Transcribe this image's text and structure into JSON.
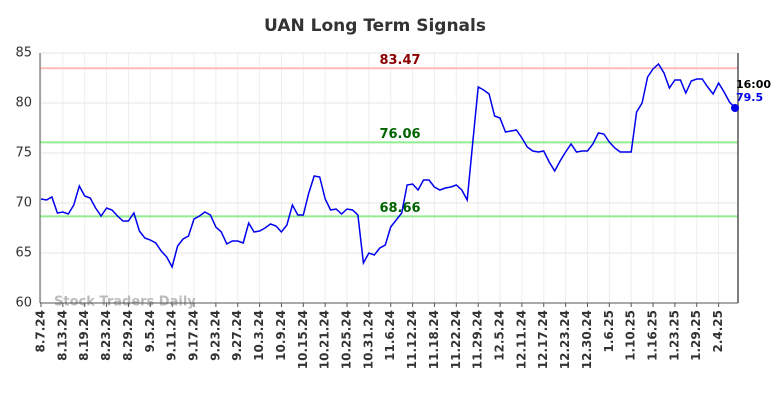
{
  "chart_data": {
    "type": "line",
    "title": "UAN Long Term Signals",
    "watermark": "Stock Traders Daily",
    "annotation": "16:00",
    "categories": [
      "8.7.24",
      null,
      null,
      null,
      "8.13.24",
      null,
      null,
      null,
      "8.19.24",
      null,
      null,
      null,
      "8.23.24",
      null,
      null,
      null,
      "8.29.24",
      null,
      null,
      null,
      "9.5.24",
      null,
      null,
      null,
      "9.11.24",
      null,
      null,
      null,
      "9.17.24",
      null,
      null,
      null,
      "9.23.24",
      null,
      null,
      null,
      "9.27.24",
      null,
      null,
      null,
      "10.3.24",
      null,
      null,
      null,
      "10.9.24",
      null,
      null,
      null,
      "10.15.24",
      null,
      null,
      null,
      "10.21.24",
      null,
      null,
      null,
      "10.25.24",
      null,
      null,
      null,
      "10.31.24",
      null,
      null,
      null,
      "11.6.24",
      null,
      null,
      null,
      "11.12.24",
      null,
      null,
      null,
      "11.18.24",
      null,
      null,
      null,
      "11.22.24",
      null,
      null,
      null,
      "11.29.24",
      null,
      null,
      null,
      "12.5.24",
      null,
      null,
      null,
      "12.11.24",
      null,
      null,
      null,
      "12.17.24",
      null,
      null,
      null,
      "12.23.24",
      null,
      null,
      null,
      "12.30.24",
      null,
      null,
      null,
      "1.6.25",
      null,
      null,
      null,
      "1.10.25",
      null,
      null,
      null,
      "1.16.25",
      null,
      null,
      null,
      "1.23.25",
      null,
      null,
      null,
      "1.29.25",
      null,
      null,
      null,
      "2.4.25",
      null,
      null,
      null
    ],
    "series": [
      {
        "color": "#0000ee",
        "values": [
          70.4,
          70.3,
          70.6,
          69.0,
          69.1,
          68.9,
          69.8,
          71.7,
          70.7,
          70.5,
          69.5,
          68.7,
          69.5,
          69.3,
          68.7,
          68.2,
          68.2,
          69.0,
          67.2,
          66.5,
          66.3,
          66.0,
          65.2,
          64.6,
          63.6,
          65.7,
          66.4,
          66.7,
          68.4,
          68.7,
          69.1,
          68.8,
          67.6,
          67.1,
          65.9,
          66.2,
          66.2,
          66.0,
          68.0,
          67.1,
          67.2,
          67.5,
          67.9,
          67.7,
          67.1,
          67.8,
          69.8,
          68.8,
          68.8,
          71.0,
          72.7,
          72.6,
          70.4,
          69.3,
          69.4,
          68.9,
          69.4,
          69.3,
          68.8,
          64.0,
          65.0,
          64.8,
          65.5,
          65.8,
          67.6,
          68.3,
          69.0,
          71.8,
          71.9,
          71.3,
          72.3,
          72.3,
          71.6,
          71.3,
          71.5,
          71.6,
          71.8,
          71.3,
          70.3,
          76.0,
          81.6,
          81.3,
          80.9,
          78.7,
          78.5,
          77.1,
          77.2,
          77.3,
          76.5,
          75.6,
          75.2,
          75.1,
          75.2,
          74.1,
          73.2,
          74.2,
          75.1,
          75.9,
          75.1,
          75.2,
          75.2,
          75.9,
          77.0,
          76.9,
          76.1,
          75.5,
          75.1,
          75.1,
          75.1,
          79.1,
          80.0,
          82.6,
          83.4,
          83.9,
          83.0,
          81.5,
          82.3,
          82.3,
          81.0,
          82.2,
          82.4,
          82.4,
          81.6,
          80.9,
          82.0,
          81.1,
          80.1,
          79.5
        ]
      }
    ],
    "reference_lines": [
      {
        "value": 83.47,
        "color": "#ffbbbb",
        "label_color": "#8b0000"
      },
      {
        "value": 76.06,
        "color": "#90ee90",
        "label_color": "#006400"
      },
      {
        "value": 68.66,
        "color": "#90ee90",
        "label_color": "#006400"
      }
    ],
    "ylim": [
      60,
      85
    ],
    "yticks": [
      60,
      65,
      70,
      75,
      80,
      85
    ],
    "grid": true
  }
}
